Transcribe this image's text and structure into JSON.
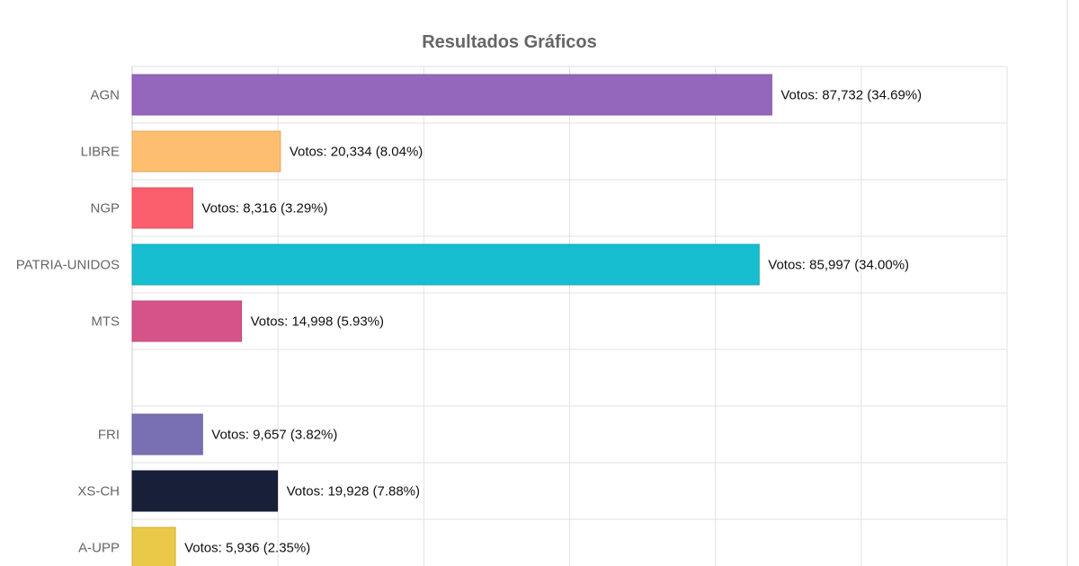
{
  "chart_data": {
    "type": "bar",
    "orientation": "horizontal",
    "title": "Resultados Gráficos",
    "xlabel": "",
    "ylabel": "",
    "xlim": [
      0,
      120000
    ],
    "grid": true,
    "label_prefix": "Votos: ",
    "categories": [
      "AGN",
      "LIBRE",
      "NGP",
      "PATRIA-UNIDOS",
      "MTS",
      "",
      "FRI",
      "XS-CH",
      "A-UPP"
    ],
    "values": [
      87732,
      20334,
      8316,
      85997,
      14998,
      null,
      9657,
      19928,
      5936
    ],
    "percentages": [
      "34.69%",
      "8.04%",
      "3.29%",
      "34.00%",
      "5.93%",
      null,
      "3.82%",
      "7.88%",
      "2.35%"
    ],
    "value_labels": [
      "Votos: 87,732 (34.69%)",
      "Votos: 20,334 (8.04%)",
      "Votos: 8,316 (3.29%)",
      "Votos: 85,997 (34.00%)",
      "Votos: 14,998 (5.93%)",
      null,
      "Votos: 9,657 (3.82%)",
      "Votos: 19,928 (7.88%)",
      "Votos: 5,936 (2.35%)"
    ],
    "colors": [
      "#9467bd",
      "#fdbf6f",
      "#fb5f6d",
      "#17becf",
      "#d6538a",
      null,
      "#7870b2",
      "#172038",
      "#ebc948"
    ]
  }
}
